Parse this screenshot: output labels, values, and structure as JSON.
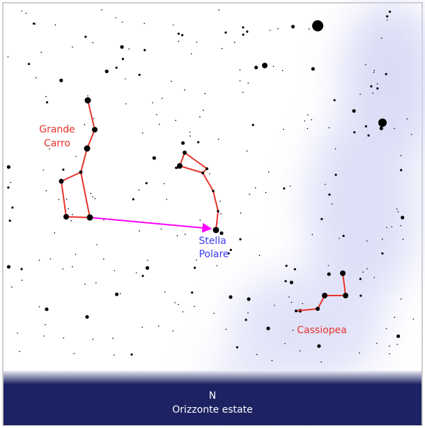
{
  "constellations": {
    "big_dipper": [
      "Grande",
      "Carro"
    ],
    "polaris": [
      "Stella",
      "Polare"
    ],
    "cassiopeia": "Cassiopea"
  },
  "horizon": {
    "direction": "N",
    "caption": "Orizzonte estate"
  }
}
